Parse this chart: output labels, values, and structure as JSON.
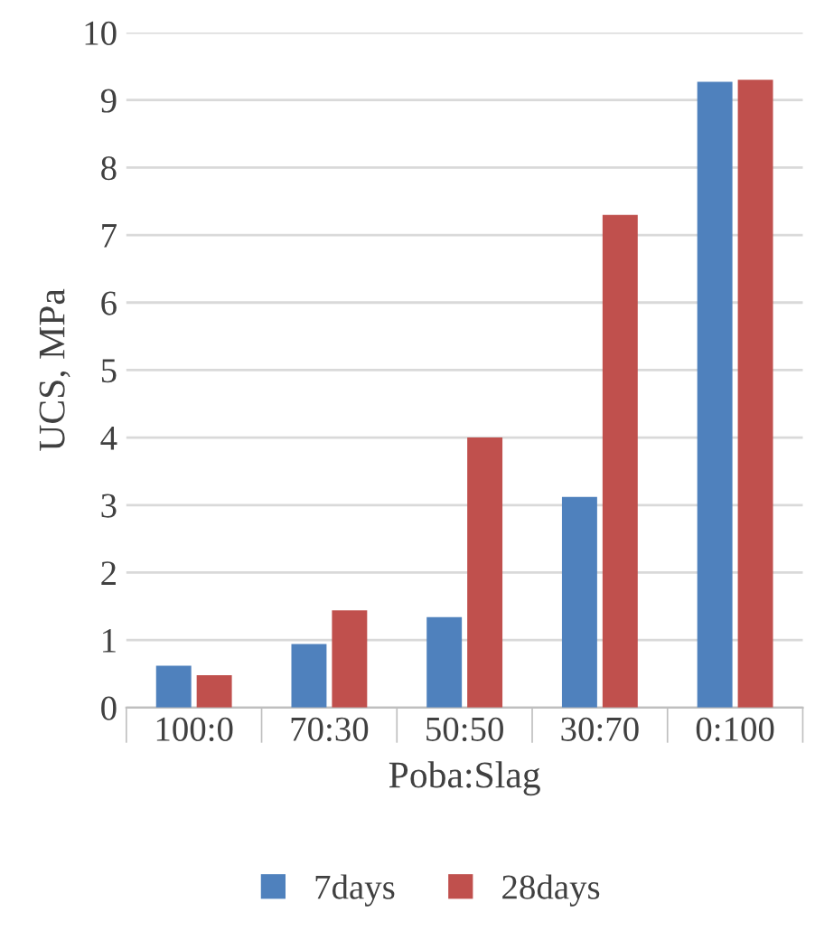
{
  "chart_data": {
    "type": "bar",
    "xlabel": "Poba:Slag",
    "ylabel": "UCS, MPa",
    "categories": [
      "100:0",
      "70:30",
      "50:50",
      "30:70",
      "0:100"
    ],
    "series": [
      {
        "name": "7days",
        "color": "#4f81bd",
        "values": [
          0.62,
          0.94,
          1.34,
          3.12,
          9.27
        ]
      },
      {
        "name": "28days",
        "color": "#c0504d",
        "values": [
          0.48,
          1.44,
          4.0,
          7.3,
          9.3
        ]
      }
    ],
    "ylim": [
      0,
      10
    ],
    "yticks": [
      0,
      1,
      2,
      3,
      4,
      5,
      6,
      7,
      8,
      9,
      10
    ],
    "grid": "y",
    "legend": "bottom"
  }
}
